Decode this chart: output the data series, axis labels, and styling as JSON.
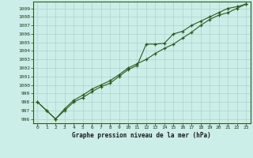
{
  "title": "Graphe pression niveau de la mer (hPa)",
  "bg_color": "#cceee8",
  "grid_color": "#aad4cc",
  "line_color": "#2d5a1e",
  "x_labels": [
    "0",
    "1",
    "2",
    "3",
    "4",
    "5",
    "6",
    "7",
    "8",
    "9",
    "10",
    "11",
    "12",
    "13",
    "14",
    "15",
    "16",
    "17",
    "18",
    "19",
    "20",
    "21",
    "22",
    "23"
  ],
  "series1": [
    998.0,
    997.0,
    996.0,
    997.0,
    998.0,
    998.5,
    999.2,
    999.8,
    1000.2,
    1001.0,
    1001.8,
    1002.3,
    1004.8,
    1004.8,
    1004.9,
    1006.0,
    1006.3,
    1007.0,
    1007.5,
    1008.0,
    1008.5,
    1009.0,
    1009.2,
    1009.5
  ],
  "series2": [
    998.0,
    997.0,
    996.0,
    997.2,
    998.2,
    998.8,
    999.5,
    1000.0,
    1000.5,
    1001.2,
    1002.0,
    1002.5,
    1003.0,
    1003.7,
    1004.3,
    1004.8,
    1005.5,
    1006.2,
    1007.0,
    1007.7,
    1008.2,
    1008.5,
    1009.0,
    1009.5
  ],
  "ylim": [
    995.5,
    1009.8
  ],
  "yticks": [
    996,
    997,
    998,
    999,
    1000,
    1001,
    1002,
    1003,
    1004,
    1005,
    1006,
    1007,
    1008,
    1009
  ]
}
